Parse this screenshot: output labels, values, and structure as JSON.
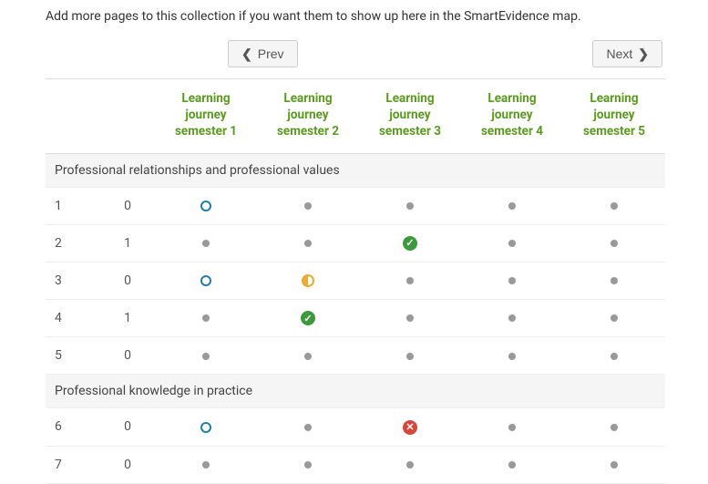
{
  "intro": "Add more pages to this collection if you want them to show up here in the SmartEvidence map.",
  "nav": {
    "prev_label": "Prev",
    "next_label": "Next"
  },
  "columns": [
    {
      "line1": "Learning",
      "line2": "journey",
      "line3": "semester 1"
    },
    {
      "line1": "Learning",
      "line2": "journey",
      "line3": "semester 2"
    },
    {
      "line1": "Learning",
      "line2": "journey",
      "line3": "semester 3"
    },
    {
      "line1": "Learning",
      "line2": "journey",
      "line3": "semester 4"
    },
    {
      "line1": "Learning",
      "line2": "journey",
      "line3": "semester 5"
    }
  ],
  "sections": [
    {
      "title": "Professional relationships and professional values",
      "rows": [
        {
          "id": "1",
          "count": "0",
          "cells": [
            "ring",
            "dot",
            "dot",
            "dot",
            "dot"
          ]
        },
        {
          "id": "2",
          "count": "1",
          "cells": [
            "dot",
            "dot",
            "check",
            "dot",
            "dot"
          ]
        },
        {
          "id": "3",
          "count": "0",
          "cells": [
            "ring",
            "half",
            "dot",
            "dot",
            "dot"
          ]
        },
        {
          "id": "4",
          "count": "1",
          "cells": [
            "dot",
            "check",
            "dot",
            "dot",
            "dot"
          ]
        },
        {
          "id": "5",
          "count": "0",
          "cells": [
            "dot",
            "dot",
            "dot",
            "dot",
            "dot"
          ]
        }
      ]
    },
    {
      "title": "Professional knowledge in practice",
      "rows": [
        {
          "id": "6",
          "count": "0",
          "cells": [
            "ring",
            "dot",
            "cross",
            "dot",
            "dot"
          ]
        },
        {
          "id": "7",
          "count": "0",
          "cells": [
            "dot",
            "dot",
            "dot",
            "dot",
            "dot"
          ]
        }
      ]
    }
  ],
  "colors": {
    "header_text": "#5b9a1f",
    "ring": "#1f7fa8",
    "half": "#f0a830",
    "check": "#3c9a3c",
    "cross": "#d9443b",
    "dot": "#999999",
    "section_bg": "#f5f5f5",
    "border": "#dddddd"
  },
  "icon_names": {
    "ring": "status-open-icon",
    "dot": "status-none-icon",
    "half": "status-partial-icon",
    "check": "status-complete-icon",
    "cross": "status-failed-icon"
  }
}
